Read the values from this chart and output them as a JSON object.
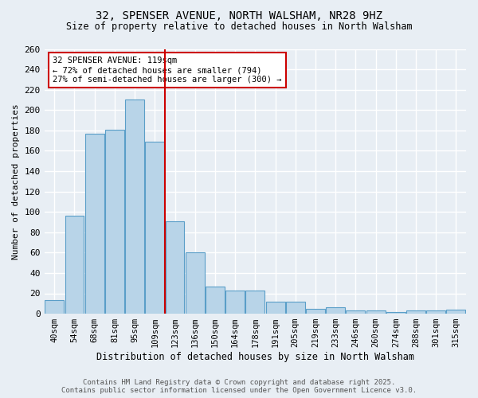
{
  "title_line1": "32, SPENSER AVENUE, NORTH WALSHAM, NR28 9HZ",
  "title_line2": "Size of property relative to detached houses in North Walsham",
  "xlabel": "Distribution of detached houses by size in North Walsham",
  "ylabel": "Number of detached properties",
  "categories": [
    "40sqm",
    "54sqm",
    "68sqm",
    "81sqm",
    "95sqm",
    "109sqm",
    "123sqm",
    "136sqm",
    "150sqm",
    "164sqm",
    "178sqm",
    "191sqm",
    "205sqm",
    "219sqm",
    "233sqm",
    "246sqm",
    "260sqm",
    "274sqm",
    "288sqm",
    "301sqm",
    "315sqm"
  ],
  "values": [
    13,
    96,
    177,
    181,
    210,
    169,
    91,
    60,
    27,
    23,
    23,
    12,
    12,
    5,
    6,
    3,
    3,
    2,
    3,
    3,
    4
  ],
  "bar_color": "#b8d4e8",
  "bar_edge_color": "#5a9ec8",
  "vline_x": 5.5,
  "vline_color": "#cc0000",
  "annotation_text": "32 SPENSER AVENUE: 119sqm\n← 72% of detached houses are smaller (794)\n27% of semi-detached houses are larger (300) →",
  "annotation_box_color": "#ffffff",
  "annotation_box_edge": "#cc0000",
  "ylim": [
    0,
    260
  ],
  "yticks": [
    0,
    20,
    40,
    60,
    80,
    100,
    120,
    140,
    160,
    180,
    200,
    220,
    240,
    260
  ],
  "footer_line1": "Contains HM Land Registry data © Crown copyright and database right 2025.",
  "footer_line2": "Contains public sector information licensed under the Open Government Licence v3.0.",
  "background_color": "#e8eef4",
  "grid_color": "#ffffff"
}
